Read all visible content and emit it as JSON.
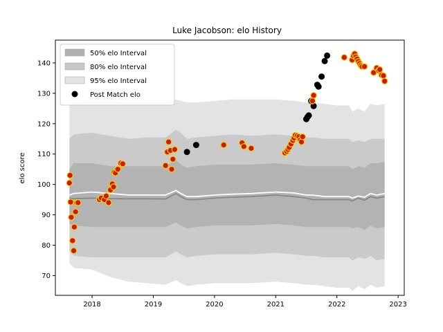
{
  "chart_data": {
    "type": "scatter",
    "title": "Luke Jacobson: elo History",
    "xlabel": "",
    "ylabel": "elo score",
    "xlim": [
      2017.4,
      2023.1
    ],
    "ylim": [
      63.5,
      147.5
    ],
    "x_ticks": [
      2018,
      2019,
      2020,
      2021,
      2022,
      2023
    ],
    "y_ticks": [
      70,
      80,
      90,
      100,
      110,
      120,
      130,
      140
    ],
    "grid": false,
    "legend_position": "upper-left",
    "legend": [
      {
        "label": "50% elo Interval",
        "kind": "band",
        "color": "#b0b0b0"
      },
      {
        "label": "80% elo Interval",
        "kind": "band",
        "color": "#c8c8c8"
      },
      {
        "label": "95% elo Interval",
        "kind": "band",
        "color": "#e3e3e3"
      },
      {
        "label": "Post Match elo",
        "kind": "marker",
        "color": "#000000"
      }
    ],
    "bands": {
      "x": [
        2017.63,
        2017.7,
        2018.0,
        2018.3,
        2018.6,
        2018.9,
        2019.2,
        2019.37,
        2019.45,
        2019.55,
        2019.7,
        2020.0,
        2020.3,
        2020.6,
        2021.0,
        2021.3,
        2021.5,
        2021.6,
        2021.8,
        2022.0,
        2022.2,
        2022.25,
        2022.35,
        2022.45,
        2022.55,
        2022.65,
        2022.78
      ],
      "upper95": [
        126.0,
        127.0,
        127.5,
        127.5,
        127.0,
        127.0,
        127.0,
        128.0,
        127.5,
        127.0,
        127.0,
        127.5,
        128.0,
        128.0,
        128.0,
        127.5,
        127.0,
        127.0,
        126.5,
        126.0,
        126.0,
        124.0,
        125.0,
        124.0,
        126.5,
        126.0,
        126.5
      ],
      "upper80": [
        115.0,
        116.5,
        117.0,
        116.0,
        115.0,
        115.5,
        115.5,
        118.0,
        117.0,
        115.0,
        115.5,
        116.0,
        116.5,
        116.0,
        116.5,
        116.0,
        115.5,
        115.5,
        115.0,
        115.0,
        115.0,
        114.0,
        114.5,
        114.0,
        115.0,
        115.0,
        115.0
      ],
      "upper50": [
        105.0,
        107.0,
        107.0,
        106.0,
        106.0,
        106.0,
        106.0,
        108.0,
        106.5,
        105.5,
        106.0,
        106.5,
        106.5,
        106.5,
        107.0,
        106.5,
        106.0,
        106.0,
        106.0,
        106.0,
        106.0,
        105.0,
        106.0,
        105.5,
        107.0,
        107.0,
        107.5
      ],
      "lower50": [
        87.0,
        86.5,
        86.0,
        86.0,
        86.0,
        86.0,
        86.0,
        87.5,
        86.5,
        85.5,
        86.0,
        86.5,
        86.5,
        86.5,
        87.0,
        86.5,
        86.0,
        86.0,
        86.0,
        86.0,
        86.0,
        85.5,
        86.0,
        85.0,
        86.5,
        85.5,
        86.0
      ],
      "lower80": [
        78.0,
        76.5,
        76.0,
        76.0,
        76.0,
        76.0,
        76.0,
        78.0,
        77.0,
        76.0,
        76.5,
        77.0,
        77.0,
        77.0,
        77.5,
        77.0,
        76.5,
        76.5,
        76.0,
        76.0,
        76.0,
        75.0,
        76.0,
        75.5,
        76.5,
        75.0,
        75.5
      ],
      "lower95": [
        74.0,
        72.5,
        72.0,
        69.5,
        68.0,
        67.5,
        67.0,
        68.5,
        67.5,
        66.5,
        67.0,
        67.5,
        67.5,
        67.5,
        68.0,
        67.5,
        67.0,
        67.0,
        66.5,
        66.0,
        66.0,
        65.0,
        66.5,
        65.5,
        67.0,
        66.0,
        66.5
      ]
    },
    "mean_line": {
      "x": [
        2017.63,
        2017.7,
        2018.0,
        2018.3,
        2018.6,
        2018.9,
        2019.2,
        2019.37,
        2019.45,
        2019.55,
        2019.7,
        2020.0,
        2020.3,
        2020.6,
        2021.0,
        2021.3,
        2021.5,
        2021.6,
        2021.8,
        2022.0,
        2022.2,
        2022.25,
        2022.35,
        2022.45,
        2022.55,
        2022.65,
        2022.78
      ],
      "upper": [
        96.5,
        97.0,
        97.5,
        97.0,
        96.5,
        96.5,
        96.5,
        98.0,
        97.0,
        96.0,
        96.0,
        96.5,
        96.8,
        97.0,
        97.5,
        97.2,
        96.5,
        96.5,
        96.0,
        96.0,
        96.0,
        95.5,
        96.2,
        95.8,
        97.0,
        96.5,
        97.0
      ],
      "lower": [
        95.5,
        95.3,
        95.5,
        95.3,
        95.3,
        95.3,
        95.2,
        97.0,
        96.0,
        95.0,
        95.0,
        95.5,
        95.8,
        96.0,
        96.5,
        96.0,
        95.5,
        95.0,
        95.0,
        95.0,
        95.0,
        94.5,
        95.5,
        94.8,
        96.0,
        95.5,
        96.0
      ]
    },
    "series": [
      {
        "name": "Post Match elo",
        "marker": "black",
        "x": [
          2019.55,
          2019.7,
          2020.15,
          2021.5,
          2021.52,
          2021.54,
          2021.58,
          2021.62,
          2021.68,
          2021.7,
          2021.75,
          2021.8,
          2021.84
        ],
        "y": [
          110.7,
          113.0,
          113.0,
          121.5,
          122.2,
          122.7,
          127.5,
          125.8,
          132.8,
          132.2,
          135.5,
          140.6,
          142.4
        ]
      },
      {
        "name": "",
        "marker": "red",
        "x": [
          2017.63,
          2017.64,
          2017.65,
          2017.66,
          2017.68,
          2017.7,
          2017.71,
          2017.73,
          2017.75,
          2017.77,
          2018.12,
          2018.15,
          2018.2,
          2018.23,
          2018.27,
          2018.3,
          2018.33,
          2018.35,
          2018.36,
          2018.38,
          2018.42,
          2018.47,
          2018.5,
          2019.2,
          2019.23,
          2019.25,
          2019.28,
          2019.3,
          2019.32,
          2019.35,
          2020.15,
          2020.45,
          2020.48,
          2020.6,
          2021.15,
          2021.18,
          2021.2,
          2021.22,
          2021.25,
          2021.28,
          2021.3,
          2021.32,
          2021.35,
          2021.38,
          2021.4,
          2021.42,
          2021.44,
          2021.6,
          2021.62,
          2022.12,
          2022.25,
          2022.27,
          2022.29,
          2022.31,
          2022.33,
          2022.35,
          2022.37,
          2022.39,
          2022.41,
          2022.45,
          2022.6,
          2022.65,
          2022.68,
          2022.7,
          2022.73,
          2022.76,
          2022.78
        ],
        "y": [
          100.5,
          103.0,
          94.2,
          89.2,
          81.5,
          78.2,
          86.0,
          91.0,
          94.0,
          94.0,
          95.0,
          95.5,
          95.0,
          96.2,
          94.0,
          98.2,
          100.2,
          99.2,
          104.0,
          103.8,
          105.0,
          107.0,
          106.8,
          106.2,
          110.7,
          114.0,
          111.2,
          105.0,
          108.3,
          111.5,
          113.0,
          113.7,
          112.5,
          111.9,
          110.4,
          110.9,
          111.5,
          112.2,
          113.3,
          114.5,
          115.3,
          116.2,
          116.0,
          115.7,
          114.6,
          114.0,
          115.7,
          127.5,
          129.3,
          141.8,
          141.0,
          142.3,
          143.0,
          142.0,
          141.3,
          140.5,
          139.8,
          139.2,
          138.8,
          138.8,
          136.8,
          138.3,
          137.5,
          137.8,
          136.0,
          135.8,
          134.0
        ]
      }
    ]
  }
}
